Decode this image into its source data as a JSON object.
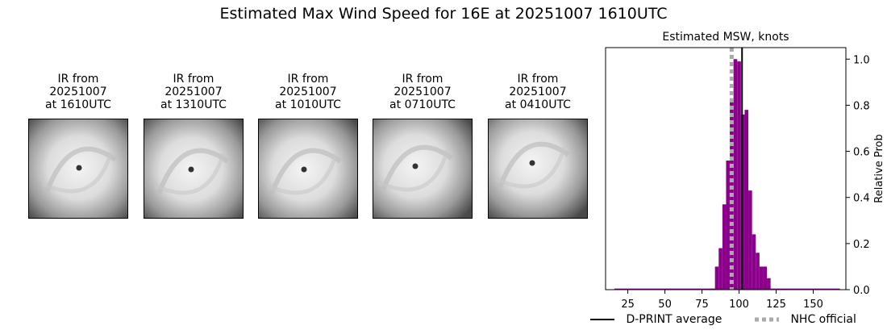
{
  "title": "Estimated Max Wind Speed for 16E at 20251007 1610UTC",
  "panels": [
    {
      "line1": "IR from",
      "line2": "20251007",
      "line3": "at 1610UTC"
    },
    {
      "line1": "IR from",
      "line2": "20251007",
      "line3": "at 1310UTC"
    },
    {
      "line1": "IR from",
      "line2": "20251007",
      "line3": "at 1010UTC"
    },
    {
      "line1": "IR from",
      "line2": "20251007",
      "line3": "at 0710UTC"
    },
    {
      "line1": "IR from",
      "line2": "20251007",
      "line3": "at 0410UTC"
    }
  ],
  "chart_data": {
    "type": "bar",
    "title": "Estimated MSW, knots",
    "ylabel": "Relative Prob",
    "xlabel": "",
    "xlim": [
      10,
      172
    ],
    "ylim": [
      0,
      1.05
    ],
    "xticks": [
      25,
      50,
      75,
      100,
      125,
      150
    ],
    "yticks": [
      0.0,
      0.2,
      0.4,
      0.6,
      0.8,
      1.0
    ],
    "ytick_labels": [
      "0.0",
      "0.2",
      "0.4",
      "0.6",
      "0.8",
      "1.0"
    ],
    "bin_width": 2.5,
    "bars": [
      {
        "x": 85,
        "y": 0.1
      },
      {
        "x": 87.5,
        "y": 0.18
      },
      {
        "x": 90,
        "y": 0.37
      },
      {
        "x": 92.5,
        "y": 0.56
      },
      {
        "x": 95,
        "y": 0.83
      },
      {
        "x": 97.5,
        "y": 1.0
      },
      {
        "x": 100,
        "y": 0.99
      },
      {
        "x": 102.5,
        "y": 0.76
      },
      {
        "x": 105,
        "y": 0.78
      },
      {
        "x": 107.5,
        "y": 0.43
      },
      {
        "x": 110,
        "y": 0.24
      },
      {
        "x": 112.5,
        "y": 0.16
      },
      {
        "x": 115,
        "y": 0.1
      },
      {
        "x": 117.5,
        "y": 0.1
      },
      {
        "x": 120,
        "y": 0.05
      }
    ],
    "baseline_range": [
      16,
      168
    ],
    "dprint_average": 102,
    "nhc_official": 95,
    "legend": [
      {
        "label": "D-PRINT average",
        "style": "solid",
        "color": "#000000"
      },
      {
        "label": "NHC official",
        "style": "dotted",
        "color": "#aaaaaa"
      }
    ],
    "legend_position": "bottom",
    "bar_color": "#8b008b",
    "grid": false
  }
}
